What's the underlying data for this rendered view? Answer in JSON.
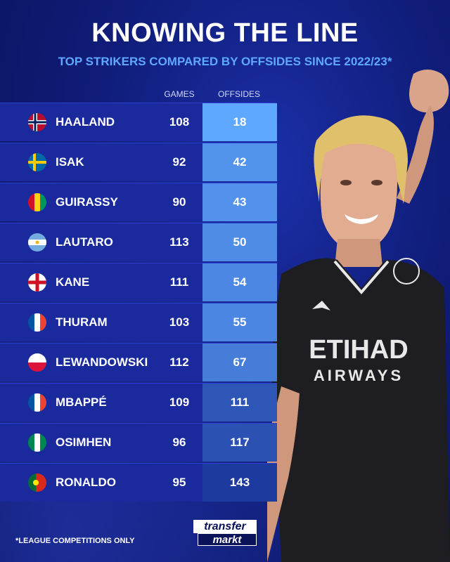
{
  "header": {
    "title": "KNOWING THE LINE",
    "subtitle": "TOP STRIKERS COMPARED BY OFFSIDES SINCE 2022/23*"
  },
  "footnote": "*LEAGUE COMPETITIONS ONLY",
  "logo": {
    "top": "transfer",
    "bottom": "markt"
  },
  "player_shirt": {
    "sponsor_top": "ETIHAD",
    "sponsor_bottom": "AIRWAYS"
  },
  "colors": {
    "background": "#101d7a",
    "subtitle": "#5fa8ff",
    "offsides_low": "#5fa8ff",
    "offsides_high": "#1d3a9e"
  },
  "chart_data": {
    "type": "table",
    "title": "KNOWING THE LINE",
    "subtitle": "TOP STRIKERS COMPARED BY OFFSIDES SINCE 2022/23*",
    "columns": [
      "GAMES",
      "OFFSIDES"
    ],
    "rows": [
      {
        "name": "HAALAND",
        "flag": "norway-flag-icon",
        "games": "108",
        "offsides": "18"
      },
      {
        "name": "ISAK",
        "flag": "sweden-flag-icon",
        "games": "92",
        "offsides": "42"
      },
      {
        "name": "GUIRASSY",
        "flag": "guinea-flag-icon",
        "games": "90",
        "offsides": "43"
      },
      {
        "name": "LAUTARO",
        "flag": "argentina-flag-icon",
        "games": "113",
        "offsides": "50"
      },
      {
        "name": "KANE",
        "flag": "england-flag-icon",
        "games": "111",
        "offsides": "54"
      },
      {
        "name": "THURAM",
        "flag": "france-flag-icon",
        "games": "103",
        "offsides": "55"
      },
      {
        "name": "LEWANDOWSKI",
        "flag": "poland-flag-icon",
        "games": "112",
        "offsides": "67"
      },
      {
        "name": "MBAPPÉ",
        "flag": "france-flag-icon",
        "games": "109",
        "offsides": "111"
      },
      {
        "name": "OSIMHEN",
        "flag": "nigeria-flag-icon",
        "games": "96",
        "offsides": "117"
      },
      {
        "name": "RONALDO",
        "flag": "portugal-flag-icon",
        "games": "95",
        "offsides": "143"
      }
    ]
  }
}
